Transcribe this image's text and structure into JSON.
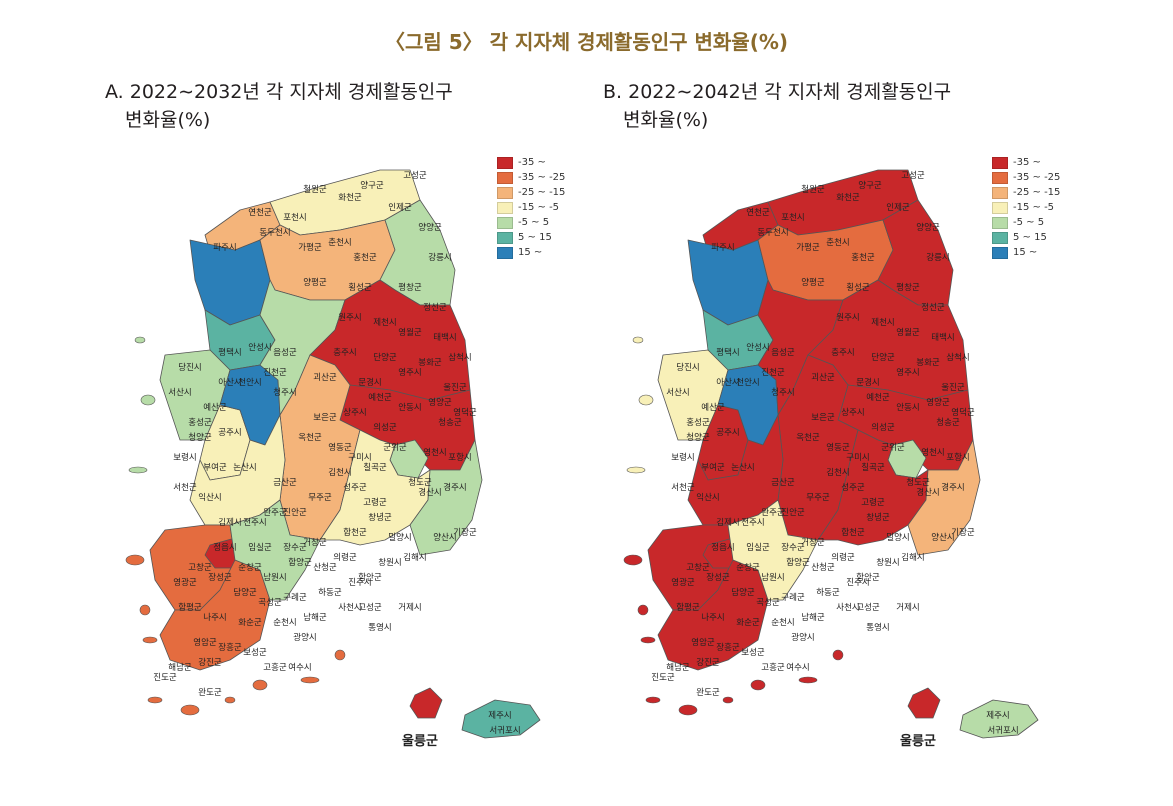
{
  "figure_title": "〈그림 5〉 각 지자체 경제활동인구 변화율(%)",
  "legend": {
    "items": [
      {
        "label": "-35 ~",
        "color": "#c8282a"
      },
      {
        "label": "-35 ~ -25",
        "color": "#e46c3f"
      },
      {
        "label": "-25 ~ -15",
        "color": "#f4b47a"
      },
      {
        "label": "-15 ~ -5",
        "color": "#f8f0b8"
      },
      {
        "label": "-5 ~ 5",
        "color": "#b7dca8"
      },
      {
        "label": "5 ~ 15",
        "color": "#5bb3a2"
      },
      {
        "label": "15 ~",
        "color": "#2b7fb8"
      }
    ]
  },
  "colors": {
    "c0": "#c8282a",
    "c1": "#e46c3f",
    "c2": "#f4b47a",
    "c3": "#f8f0b8",
    "c4": "#b7dca8",
    "c5": "#5bb3a2",
    "c6": "#2b7fb8"
  },
  "panels": [
    {
      "id": "A",
      "title_line1": "A. 2022∼2032년 각 지자체 경제활동인구",
      "title_line2": "변화율(%)",
      "regions": {
        "northwest": "c2",
        "seoul_metro": "c6",
        "gyeonggi_south": "c5",
        "chungnam_west": "c4",
        "chungnam_east": "c3",
        "sejong_daejeon": "c6",
        "gangwon_north": "c3",
        "gangwon_central": "c2",
        "gangwon_east": "c4",
        "chungbuk": "c4",
        "gyeongbuk_north": "c0",
        "gyeongbuk_south": "c0",
        "daegu": "c4",
        "gyeongnam_west": "c2",
        "gyeongnam_east": "c3",
        "busan_ulsan": "c4",
        "jeonbuk": "c3",
        "jeonnam_west": "c1",
        "jeonnam_south": "c1",
        "gwangju": "c0",
        "jeonnam_east": "c4",
        "jeju": "c5",
        "ulleung": "c0"
      },
      "labels": [
        "철원군",
        "화천군",
        "양구군",
        "인제군",
        "고성군",
        "연천군",
        "포천시",
        "가평군",
        "춘천시",
        "홍천군",
        "양양군",
        "강릉시",
        "파주시",
        "동두천시",
        "양평군",
        "횡성군",
        "평창군",
        "정선군",
        "원주시",
        "영월군",
        "태백시",
        "삼척시",
        "충주시",
        "단양군",
        "제천시",
        "평택시",
        "안성시",
        "음성군",
        "진천군",
        "당진시",
        "서산시",
        "아산시",
        "천안시",
        "청주시",
        "괴산군",
        "보은군",
        "옥천군",
        "영동군",
        "홍성군",
        "예산군",
        "공주시",
        "논산시",
        "금산군",
        "부여군",
        "청양군",
        "보령시",
        "서천군",
        "익산시",
        "김제시",
        "전주시",
        "완주군",
        "진안군",
        "무주군",
        "정읍시",
        "임실군",
        "장수군",
        "고창군",
        "순창군",
        "남원시",
        "영광군",
        "장성군",
        "담양군",
        "곡성군",
        "구례군",
        "함평군",
        "나주시",
        "화순군",
        "순천시",
        "광양시",
        "영암군",
        "장흥군",
        "보성군",
        "고흥군",
        "해남군",
        "강진군",
        "완도군",
        "진도군",
        "여수시",
        "상주시",
        "문경시",
        "예천군",
        "영주시",
        "봉화군",
        "울진군",
        "영양군",
        "청송군",
        "영덕군",
        "안동시",
        "의성군",
        "군위군",
        "구미시",
        "김천시",
        "칠곡군",
        "성주군",
        "고령군",
        "청도군",
        "경산시",
        "영천시",
        "포항시",
        "경주시",
        "거창군",
        "함양군",
        "산청군",
        "합천군",
        "의령군",
        "창녕군",
        "밀양시",
        "양산시",
        "김해시",
        "창원시",
        "진주시",
        "하동군",
        "사천시",
        "고성군",
        "통영시",
        "거제시",
        "남해군",
        "함안군",
        "기장군"
      ],
      "jeju_label": "제주시",
      "seogwipo_label": "서귀포시",
      "ulleung_label": "울릉군"
    },
    {
      "id": "B",
      "title_line1": "B. 2022∼2042년 각 지자체 경제활동인구",
      "title_line2": "변화율(%)",
      "regions": {
        "northwest": "c0",
        "seoul_metro": "c6",
        "gyeonggi_south": "c5",
        "chungnam_west": "c3",
        "chungnam_east": "c0",
        "sejong_daejeon": "c6",
        "gangwon_north": "c0",
        "gangwon_central": "c1",
        "gangwon_east": "c0",
        "chungbuk": "c0",
        "gyeongbuk_north": "c0",
        "gyeongbuk_south": "c0",
        "daegu": "c4",
        "gyeongnam_west": "c0",
        "gyeongnam_east": "c0",
        "busan_ulsan": "c2",
        "jeonbuk": "c0",
        "jeonnam_west": "c0",
        "jeonnam_south": "c0",
        "gwangju": "c0",
        "jeonnam_east": "c3",
        "jeju": "c4",
        "ulleung": "c0"
      },
      "labels": [
        "철원군",
        "화천군",
        "양구군",
        "인제군",
        "고성군",
        "연천군",
        "포천시",
        "가평군",
        "춘천시",
        "홍천군",
        "양양군",
        "강릉시",
        "파주시",
        "동두천시",
        "양평군",
        "횡성군",
        "평창군",
        "정선군",
        "원주시",
        "영월군",
        "태백시",
        "삼척시",
        "충주시",
        "단양군",
        "제천시",
        "평택시",
        "안성시",
        "음성군",
        "진천군",
        "당진시",
        "서산시",
        "아산시",
        "천안시",
        "청주시",
        "괴산군",
        "보은군",
        "옥천군",
        "영동군",
        "홍성군",
        "예산군",
        "공주시",
        "논산시",
        "금산군",
        "부여군",
        "청양군",
        "보령시",
        "서천군",
        "익산시",
        "김제시",
        "전주시",
        "완주군",
        "진안군",
        "무주군",
        "정읍시",
        "임실군",
        "장수군",
        "고창군",
        "순창군",
        "남원시",
        "영광군",
        "장성군",
        "담양군",
        "곡성군",
        "구례군",
        "함평군",
        "나주시",
        "화순군",
        "순천시",
        "광양시",
        "영암군",
        "장흥군",
        "보성군",
        "고흥군",
        "해남군",
        "강진군",
        "완도군",
        "진도군",
        "여수시",
        "상주시",
        "문경시",
        "예천군",
        "영주시",
        "봉화군",
        "울진군",
        "영양군",
        "청송군",
        "영덕군",
        "안동시",
        "의성군",
        "군위군",
        "구미시",
        "김천시",
        "칠곡군",
        "성주군",
        "고령군",
        "청도군",
        "경산시",
        "영천시",
        "포항시",
        "경주시",
        "거창군",
        "함양군",
        "산청군",
        "합천군",
        "의령군",
        "창녕군",
        "밀양시",
        "양산시",
        "김해시",
        "창원시",
        "진주시",
        "하동군",
        "사천시",
        "고성군",
        "통영시",
        "거제시",
        "남해군",
        "함안군",
        "기장군"
      ],
      "jeju_label": "제주시",
      "seogwipo_label": "서귀포시",
      "ulleung_label": "울릉군"
    }
  ]
}
